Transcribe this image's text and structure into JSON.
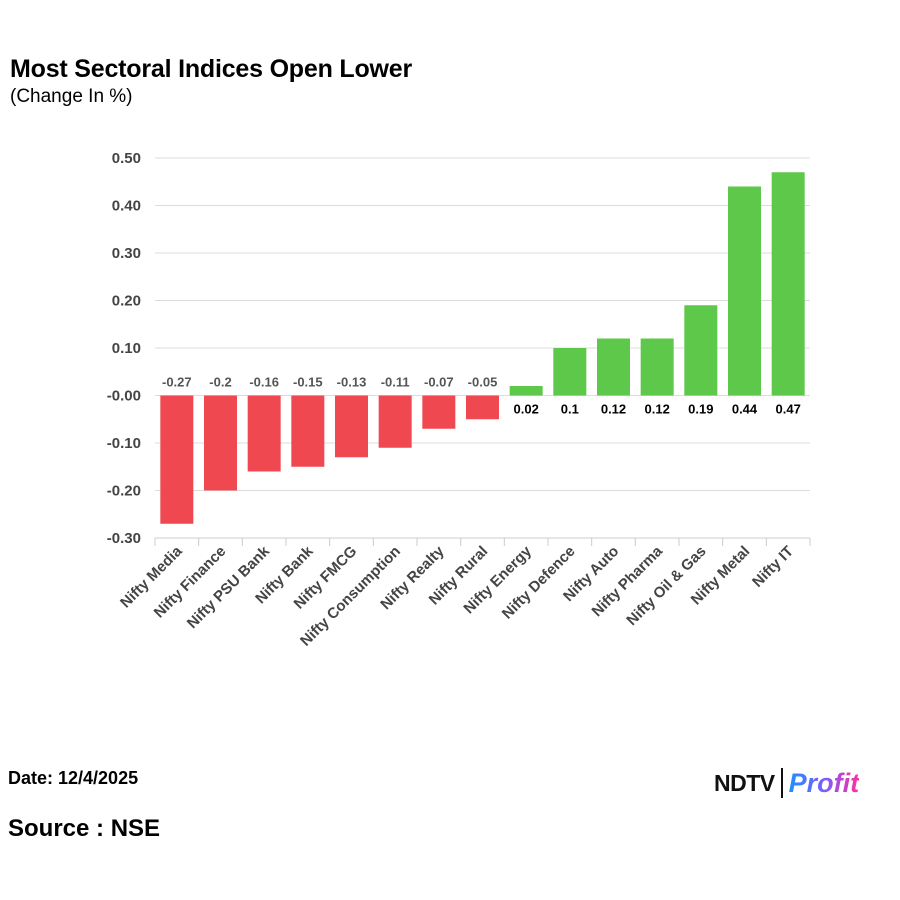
{
  "chart_data": {
    "type": "bar",
    "title": "Most Sectoral Indices Open Lower",
    "subtitle": "(Change In %)",
    "xlabel": "",
    "ylabel": "",
    "ylim": [
      -0.3,
      0.5
    ],
    "yticks": [
      0.5,
      0.4,
      0.3,
      0.2,
      0.1,
      0.0,
      -0.1,
      -0.2,
      -0.3
    ],
    "ytick_labels": [
      "0.50",
      "0.40",
      "0.30",
      "0.20",
      "0.10",
      "-0.00",
      "-0.10",
      "-0.20",
      "-0.30"
    ],
    "grid": true,
    "categories": [
      "Nifty Media",
      "Nifty Finance",
      "Nifty PSU Bank",
      "Nifty Bank",
      "Nifty FMCG",
      "Nifty Consumption",
      "Nifty Realty",
      "Nifty Rural",
      "Nifty Energy",
      "Nifty Defence",
      "Nifty Auto",
      "Nifty Pharma",
      "Nifty Oil & Gas",
      "Nifty Metal",
      "Nifty IT"
    ],
    "values": [
      -0.27,
      -0.2,
      -0.16,
      -0.15,
      -0.13,
      -0.11,
      -0.07,
      -0.05,
      0.02,
      0.1,
      0.12,
      0.12,
      0.19,
      0.44,
      0.47
    ],
    "value_labels": [
      "-0.27",
      "-0.2",
      "-0.16",
      "-0.15",
      "-0.13",
      "-0.11",
      "-0.07",
      "-0.05",
      "0.02",
      "0.1",
      "0.12",
      "0.12",
      "0.19",
      "0.44",
      "0.47"
    ],
    "colors": {
      "negative": "#f04850",
      "positive": "#5ec84a",
      "grid": "#dcdcdc",
      "negative_label": "#555555",
      "positive_label": "#000000"
    }
  },
  "footer": {
    "date": "Date: 12/4/2025",
    "source": "Source : NSE"
  },
  "logo": {
    "brand": "NDTV",
    "product": "Profit"
  }
}
